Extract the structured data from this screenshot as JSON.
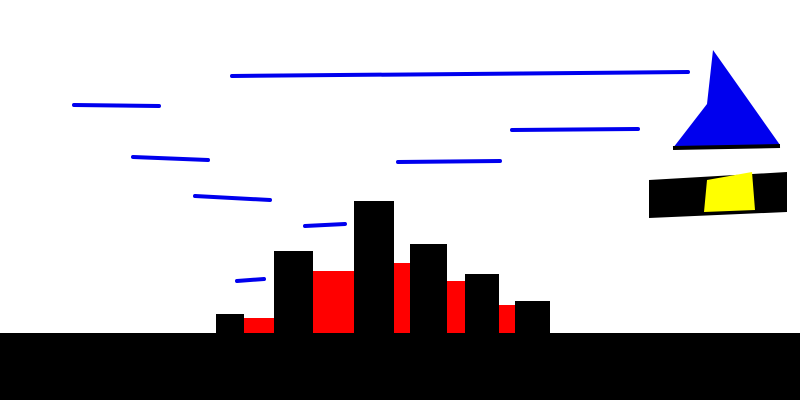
{
  "scene": {
    "description_free": true,
    "colors": {
      "background": "#ffffff",
      "ground": "#000000",
      "black_bars": "#000000",
      "red_bars": "#ff0000",
      "strokes": "#0000ee",
      "sail": "#0000ee",
      "sail_outline": "#000000",
      "boat_hull": "#000000",
      "boat_window": "#ffff00"
    },
    "black_bar_count": 6,
    "red_bar_count": 5,
    "blue_stroke_count": 9
  }
}
